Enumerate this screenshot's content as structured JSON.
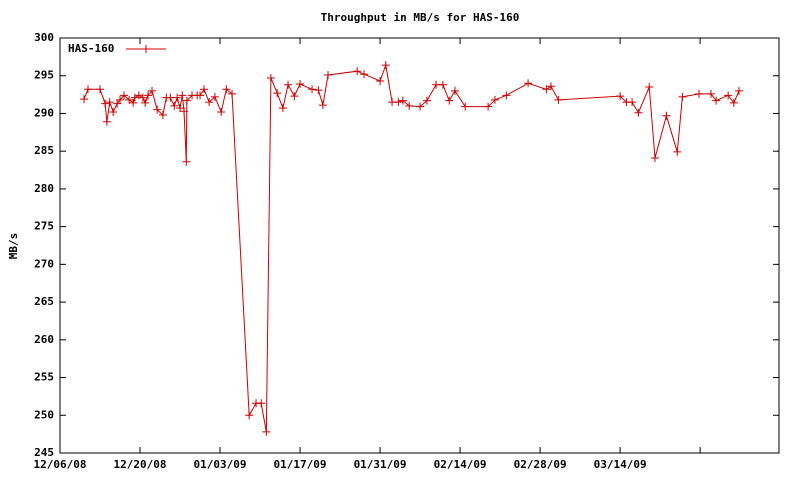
{
  "chart_data": {
    "type": "line",
    "title": "Throughput in MB/s for HAS-160",
    "y_label": "MB/s",
    "legend": "top-left",
    "grid": false,
    "x": [
      4.2,
      4.9,
      7.0,
      7.9,
      8.2,
      8.7,
      9.3,
      10.0,
      10.5,
      11.2,
      12.1,
      12.8,
      13.1,
      13.8,
      14.5,
      14.9,
      15.4,
      16.1,
      17.0,
      18.0,
      18.6,
      19.3,
      20.0,
      20.5,
      21.0,
      21.4,
      21.7,
      22.1,
      22.2,
      23.1,
      24.0,
      24.5,
      25.2,
      26.1,
      27.1,
      28.2,
      29.1,
      30.1,
      33.1,
      34.3,
      35.2,
      36.1,
      36.9,
      38.0,
      39.0,
      39.9,
      41.0,
      42.0,
      44.1,
      45.2,
      46.0,
      46.9,
      52.0,
      53.2,
      56.0,
      57.0,
      58.1,
      59.2,
      60.0,
      61.1,
      63.0,
      64.2,
      65.8,
      67.0,
      68.1,
      69.1,
      70.9,
      74.9,
      76.1,
      78.1,
      81.9,
      85.1,
      85.9,
      87.2,
      98.0,
      99.1,
      100.1,
      101.2,
      103.1,
      104.1,
      106.1,
      108.0,
      108.9,
      111.8,
      113.9,
      114.8,
      116.9,
      117.9,
      118.8
    ],
    "series": [
      {
        "name": "HAS-160",
        "color": "#cc0000",
        "values": [
          291.9,
          293.2,
          293.2,
          291.3,
          288.9,
          291.5,
          290.2,
          291.3,
          291.8,
          292.4,
          291.8,
          291.4,
          292.1,
          292.4,
          292.1,
          291.4,
          292.4,
          293.0,
          290.5,
          289.8,
          292.1,
          292.1,
          291.0,
          292.1,
          290.7,
          292.4,
          290.3,
          283.6,
          291.7,
          292.4,
          292.4,
          292.4,
          293.2,
          291.5,
          292.2,
          290.2,
          293.2,
          292.6,
          250.0,
          251.6,
          251.6,
          247.8,
          294.7,
          292.7,
          290.7,
          293.8,
          292.3,
          293.9,
          293.2,
          293.1,
          291.1,
          295.1,
          295.6,
          295.2,
          294.3,
          296.4,
          291.5,
          291.5,
          291.7,
          291.0,
          290.9,
          291.7,
          293.8,
          293.8,
          291.7,
          293.0,
          290.9,
          290.9,
          291.8,
          292.4,
          294.0,
          293.2,
          293.6,
          291.8,
          292.3,
          291.5,
          291.5,
          290.1,
          293.5,
          284.1,
          289.7,
          284.9,
          292.2,
          292.6,
          292.6,
          291.7,
          292.4,
          291.4,
          293.0
        ]
      }
    ],
    "xlim": [
      0,
      125.8
    ],
    "xticks": [
      {
        "value": 0,
        "label": "12/06/08"
      },
      {
        "value": 14,
        "label": "12/20/08"
      },
      {
        "value": 28,
        "label": "01/03/09"
      },
      {
        "value": 42,
        "label": "01/17/09"
      },
      {
        "value": 56,
        "label": "01/31/09"
      },
      {
        "value": 70,
        "label": "02/14/09"
      },
      {
        "value": 84,
        "label": "02/28/09"
      },
      {
        "value": 98,
        "label": "03/14/09"
      },
      {
        "value": 112,
        "label": null
      }
    ],
    "ylim": [
      245,
      300
    ],
    "yticks": [
      245,
      250,
      255,
      260,
      265,
      270,
      275,
      280,
      285,
      290,
      295,
      300
    ]
  }
}
